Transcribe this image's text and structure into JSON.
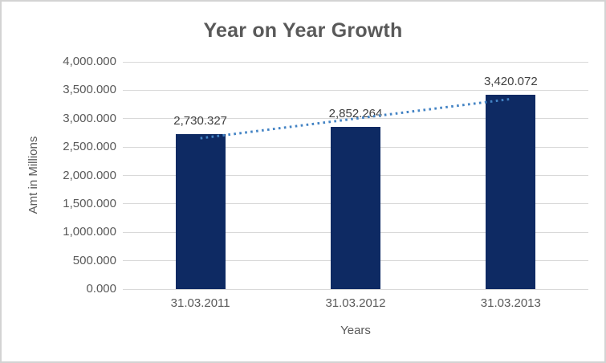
{
  "chart_data": {
    "type": "bar",
    "title": "Year on Year Growth",
    "xlabel": "Years",
    "ylabel": "Amt in Millions",
    "categories": [
      "31.03.2011",
      "31.03.2012",
      "31.03.2013"
    ],
    "values": [
      2730.327,
      2852.264,
      3420.072
    ],
    "value_labels": [
      "2,730.327",
      "2,852.264",
      "3,420.072"
    ],
    "ylim": [
      0,
      4000
    ],
    "ytick_step": 500,
    "ytick_labels": [
      "0.000",
      "500.000",
      "1,000.000",
      "1,500.000",
      "2,000.000",
      "2,500.000",
      "3,000.000",
      "3,500.000",
      "4,000.000"
    ],
    "grid": "horizontal",
    "legend": "none",
    "trendline": {
      "type": "linear",
      "style": "dotted"
    },
    "colors": {
      "bar": "#0E2A63",
      "trendline": "#4383C4",
      "gridline": "#D9D9D9",
      "axis_text": "#595959",
      "label_text": "#404040",
      "title_text": "#595959",
      "frame_border": "#D3D3D3",
      "background": "#FFFFFF"
    }
  }
}
